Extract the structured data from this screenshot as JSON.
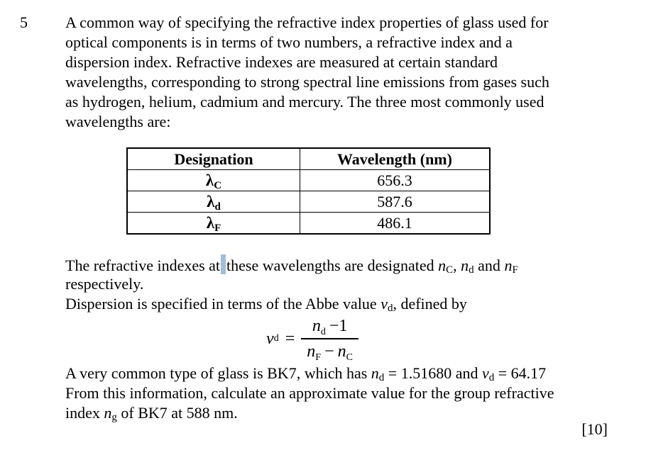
{
  "colors": {
    "cursor_highlight": "#a3bdd8",
    "text": "#000000",
    "background": "#ffffff"
  },
  "question": {
    "number": "5",
    "marks": "[10]",
    "intro_lines": [
      "A common way of specifying the refractive index properties of glass used for",
      "optical components is in terms of two numbers, a refractive index and a",
      "dispersion index. Refractive indexes are measured at certain standard",
      "wavelengths, corresponding to strong spectral line emissions from gases such",
      "as hydrogen, helium, cadmium and mercury. The three most commonly used",
      "wavelengths are:"
    ],
    "table": {
      "headers": [
        "Designation",
        "Wavelength (nm)"
      ],
      "rows": [
        {
          "symbol": "λ",
          "sub": "C",
          "wavelength": "656.3"
        },
        {
          "symbol": "λ",
          "sub": "d",
          "wavelength": "587.6"
        },
        {
          "symbol": "λ",
          "sub": "F",
          "wavelength": "486.1"
        }
      ]
    },
    "para2": {
      "l1_before_cursor": "The refractive indexes at",
      "l1_after_cursor": "these wavelengths are designated ",
      "n": "n",
      "sub_C": "C",
      "sub_d": "d",
      "sub_F": "F",
      "l1_comma": ", ",
      "l1_and": " and ",
      "l2": "respectively.",
      "l3_before": "Dispersion is specified in terms of the Abbe value ",
      "v": "v",
      "l3_after": ", defined by"
    },
    "formula": {
      "lhs": "v",
      "lhs_sub": "d",
      "equals": "=",
      "num_n": "n",
      "num_sub": "d",
      "num_rest": "−1",
      "den_n1": "n",
      "den_sub1": "F",
      "den_minus": "−",
      "den_n2": "n",
      "den_sub2": "C"
    },
    "para3": {
      "l1_a": "A very common type of glass is BK7, which has ",
      "n": "n",
      "sub_d": "d",
      "l1_b": " = 1.51680 and ",
      "v": "v",
      "l1_c": " = 64.17",
      "l2": "From this information, calculate an approximate value for the group refractive",
      "l3_a": "index ",
      "sub_g": "g",
      "l3_b": " of BK7 at 588 nm."
    }
  }
}
